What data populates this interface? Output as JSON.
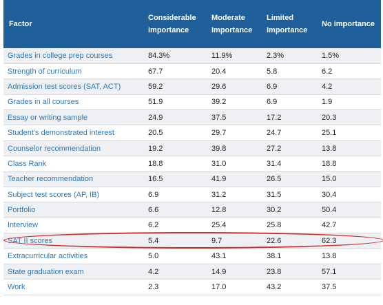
{
  "headers": {
    "factor": "Factor",
    "considerable": "Considerable importance",
    "moderate": "Moderate Importance",
    "limited": "Limited Importance",
    "no": "No importance"
  },
  "rows": [
    {
      "factor": "Grades in college prep courses",
      "considerable": "84.3%",
      "moderate": "11.9%",
      "limited": "2.3%",
      "no": "1.5%"
    },
    {
      "factor": "Strength of curriculum",
      "considerable": "67.7",
      "moderate": "20.4",
      "limited": "5.8",
      "no": "6.2"
    },
    {
      "factor": "Admission test scores (SAT, ACT)",
      "considerable": "59.2",
      "moderate": "29.6",
      "limited": "6.9",
      "no": "4.2"
    },
    {
      "factor": "Grades in all courses",
      "considerable": "51.9",
      "moderate": "39.2",
      "limited": "6.9",
      "no": "1.9"
    },
    {
      "factor": "Essay or writing sample",
      "considerable": "24.9",
      "moderate": "37.5",
      "limited": "17.2",
      "no": "20.3"
    },
    {
      "factor": "Student's demonstrated interest",
      "considerable": "20.5",
      "moderate": "29.7",
      "limited": "24.7",
      "no": "25.1"
    },
    {
      "factor": "Counselor recommendation",
      "considerable": "19.2",
      "moderate": "39.8",
      "limited": "27.2",
      "no": "13.8"
    },
    {
      "factor": "Class Rank",
      "considerable": "18.8",
      "moderate": "31.0",
      "limited": "31.4",
      "no": "18.8"
    },
    {
      "factor": "Teacher recommendation",
      "considerable": "16.5",
      "moderate": "41.9",
      "limited": "26.5",
      "no": "15.0"
    },
    {
      "factor": "Subject test scores (AP, IB)",
      "considerable": "6.9",
      "moderate": "31.2",
      "limited": "31.5",
      "no": "30.4"
    },
    {
      "factor": "Portfolio",
      "considerable": "6.6",
      "moderate": "12.8",
      "limited": "30.2",
      "no": "50.4"
    },
    {
      "factor": "Interview",
      "considerable": "6.2",
      "moderate": "25.4",
      "limited": "25.8",
      "no": "42.7"
    },
    {
      "factor": "SAT II scores",
      "considerable": "5.4",
      "moderate": "9.7",
      "limited": "22.6",
      "no": "62.3"
    },
    {
      "factor": "Extracurricular activities",
      "considerable": "5.0",
      "moderate": "43.1",
      "limited": "38.1",
      "no": "13.8"
    },
    {
      "factor": "State graduation exam",
      "considerable": "4.2",
      "moderate": "14.9",
      "limited": "23.8",
      "no": "57.1"
    },
    {
      "factor": "Work",
      "considerable": "2.3",
      "moderate": "17.0",
      "limited": "43.2",
      "no": "37.5"
    }
  ],
  "colors": {
    "header_bg": "#1f5f9a",
    "factor_text": "#2f78b8",
    "highlight": "#d0302a"
  }
}
